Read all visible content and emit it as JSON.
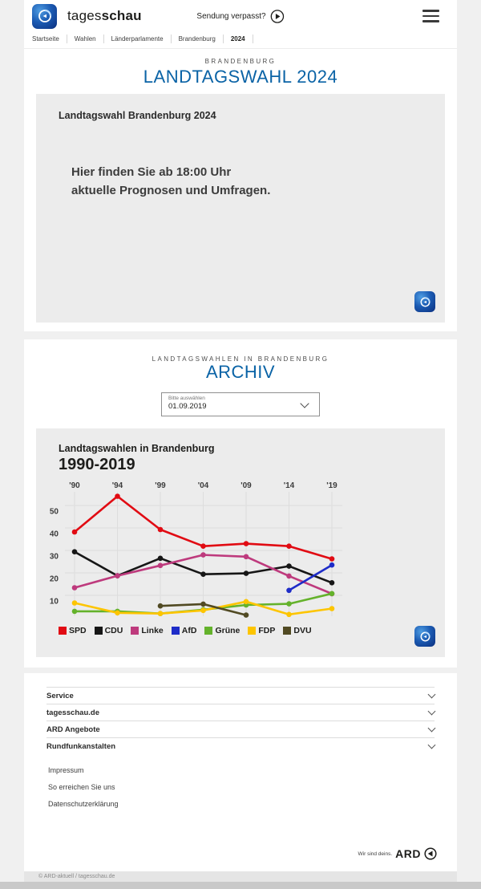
{
  "header": {
    "brand_prefix": "tages",
    "brand_suffix": "schau",
    "missed_label": "Sendung verpasst?"
  },
  "breadcrumb": {
    "items": [
      {
        "label": "Startseite"
      },
      {
        "label": "Wahlen"
      },
      {
        "label": "Länderparlamente"
      },
      {
        "label": "Brandenburg"
      },
      {
        "label": "2024"
      }
    ]
  },
  "hero": {
    "kicker": "BRANDENBURG",
    "title": "LANDTAGSWAHL 2024",
    "teaser": {
      "heading": "Landtagswahl Brandenburg 2024",
      "message_line1": "Hier finden Sie ab 18:00 Uhr",
      "message_line2": "aktuelle Prognosen und Umfragen."
    }
  },
  "archive": {
    "kicker": "LANDTAGSWAHLEN IN BRANDENBURG",
    "title": "ARCHIV",
    "select": {
      "label": "Bitte auswählen",
      "value": "01.09.2019"
    }
  },
  "chart_data": {
    "type": "line",
    "title": "Landtagswahlen in Brandenburg",
    "subtitle": "1990-2019",
    "categories": [
      "'90",
      "'94",
      "'99",
      "'04",
      "'09",
      "'14",
      "'19"
    ],
    "yticks": [
      10,
      20,
      30,
      40,
      50
    ],
    "ylim": [
      0,
      57
    ],
    "grid": true,
    "legend_position": "bottom",
    "unit": "percent",
    "series": [
      {
        "name": "SPD",
        "color": "#e10b13",
        "values": [
          38.2,
          54.1,
          39.3,
          31.9,
          33.0,
          31.9,
          26.2
        ]
      },
      {
        "name": "CDU",
        "color": "#161616",
        "values": [
          29.4,
          18.7,
          26.5,
          19.4,
          19.8,
          23.0,
          15.6
        ]
      },
      {
        "name": "Linke",
        "color": "#be3a7d",
        "values": [
          13.4,
          18.7,
          23.3,
          28.0,
          27.2,
          18.6,
          10.7
        ]
      },
      {
        "name": "AfD",
        "color": "#1e2cc8",
        "values": [
          null,
          null,
          null,
          null,
          null,
          12.2,
          23.5
        ]
      },
      {
        "name": "Grüne",
        "color": "#64b22b",
        "values": [
          2.9,
          2.9,
          1.9,
          3.6,
          5.7,
          6.2,
          10.8
        ]
      },
      {
        "name": "FDP",
        "color": "#fdc500",
        "values": [
          6.6,
          2.2,
          1.9,
          3.3,
          7.2,
          1.5,
          4.1
        ]
      },
      {
        "name": "DVU",
        "color": "#514a23",
        "values": [
          null,
          null,
          5.3,
          6.1,
          1.2,
          null,
          null
        ]
      }
    ]
  },
  "footer": {
    "accordion": [
      {
        "label": "Service"
      },
      {
        "label": "tagesschau.de"
      },
      {
        "label": "ARD Angebote"
      },
      {
        "label": "Rundfunkanstalten"
      }
    ],
    "links": [
      {
        "label": "Impressum"
      },
      {
        "label": "So erreichen Sie uns"
      },
      {
        "label": "Datenschutzerklärung"
      }
    ],
    "ard_claim": "Wir sind deins.",
    "ard_word": "ARD",
    "copyright": "© ARD-aktuell / tagesschau.de"
  },
  "colors": {
    "accent_blue": "#0a63a6",
    "page_background": "#f0f0f0",
    "panel_background": "#ececec"
  },
  "icons": {
    "play": "circled play triangle",
    "menu": "hamburger",
    "chevron_down": "chevron down",
    "tagesschau_globe": "blue rounded square with globe",
    "ard_one": "ARD circled one"
  }
}
